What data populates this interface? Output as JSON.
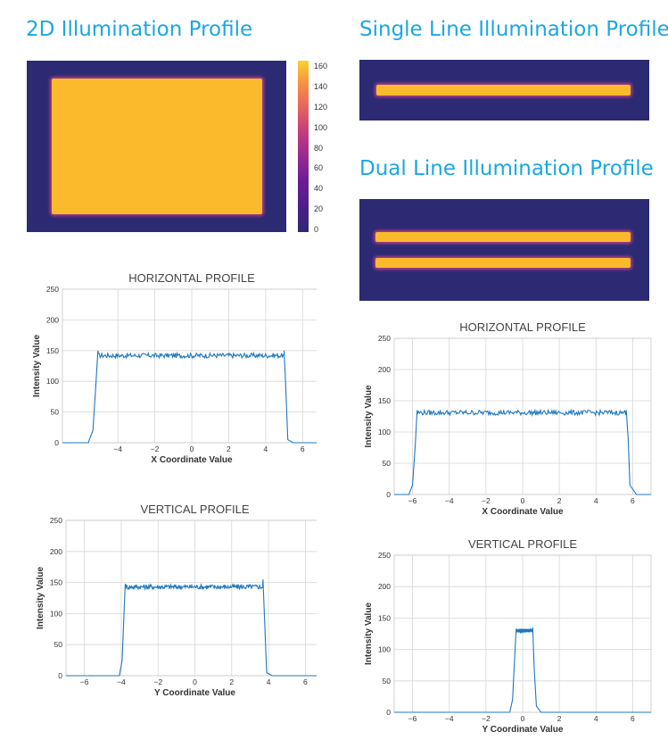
{
  "headings": {
    "two_d": "2D Illumination Profile",
    "single_line": "Single Line Illumination Profile",
    "dual_line": "Dual Line Illumination Profile"
  },
  "colorbar": {
    "ticks": [
      "0",
      "20",
      "40",
      "60",
      "80",
      "100",
      "120",
      "140",
      "160"
    ],
    "colors": [
      "#2c2a73",
      "#6f1b96",
      "#c83f7a",
      "#f7963c",
      "#fbd32f"
    ]
  },
  "colors": {
    "heading": "#1ca7e0",
    "background": "#2c2a73",
    "illuminated": "#fbba2c",
    "line": "#1f78bf",
    "grid": "#d0d0d0"
  },
  "chart_data": [
    {
      "id": "h1",
      "type": "line",
      "title": "HORIZONTAL PROFILE",
      "xlabel": "X Coordinate Value",
      "ylabel": "Intensity Value",
      "xlim": [
        -7,
        7
      ],
      "ylim": [
        0,
        250
      ],
      "xticks": [
        -4,
        -2,
        0,
        2,
        4,
        6
      ],
      "yticks": [
        0,
        50,
        100,
        150,
        200,
        250
      ],
      "grid": true,
      "points": [
        [
          -7,
          0
        ],
        [
          -5.6,
          0
        ],
        [
          -5.35,
          20
        ],
        [
          -5.2,
          90
        ],
        [
          -5.08,
          150
        ],
        [
          5.0,
          150
        ],
        [
          5.1,
          82
        ],
        [
          5.2,
          5
        ],
        [
          5.5,
          0
        ],
        [
          7,
          0
        ]
      ],
      "plateau": {
        "x": [
          -5.05,
          5.0
        ],
        "level": 142,
        "noise": 4
      }
    },
    {
      "id": "v1",
      "type": "line",
      "title": "VERTICAL PROFILE",
      "xlabel": "Y Coordinate Value",
      "ylabel": "Intensity Value",
      "xlim": [
        -7,
        7
      ],
      "ylim": [
        0,
        250
      ],
      "xticks": [
        -6,
        -4,
        -2,
        0,
        2,
        4,
        6
      ],
      "yticks": [
        0,
        50,
        100,
        150,
        200,
        250
      ],
      "grid": true,
      "points": [
        [
          -7,
          0
        ],
        [
          -4.1,
          0
        ],
        [
          -3.95,
          25
        ],
        [
          -3.85,
          100
        ],
        [
          -3.78,
          148
        ],
        [
          3.7,
          155
        ],
        [
          3.8,
          80
        ],
        [
          3.9,
          5
        ],
        [
          4.2,
          0
        ],
        [
          7,
          0
        ]
      ],
      "plateau": {
        "x": [
          -3.75,
          3.68
        ],
        "level": 143,
        "noise": 4
      }
    },
    {
      "id": "h2",
      "type": "line",
      "title": "HORIZONTAL PROFILE",
      "xlabel": "X Coordinate Value",
      "ylabel": "Intensity Value",
      "xlim": [
        -7,
        7
      ],
      "ylim": [
        0,
        250
      ],
      "xticks": [
        -6,
        -4,
        -2,
        0,
        2,
        4,
        6
      ],
      "yticks": [
        0,
        50,
        100,
        150,
        200,
        250
      ],
      "grid": true,
      "points": [
        [
          -7,
          0
        ],
        [
          -6.2,
          0
        ],
        [
          -6.0,
          15
        ],
        [
          -5.85,
          80
        ],
        [
          -5.75,
          135
        ],
        [
          5.65,
          135
        ],
        [
          5.75,
          90
        ],
        [
          5.85,
          15
        ],
        [
          6.2,
          0
        ],
        [
          7,
          0
        ]
      ],
      "plateau": {
        "x": [
          -5.72,
          5.62
        ],
        "level": 131,
        "noise": 4
      }
    },
    {
      "id": "v2",
      "type": "line",
      "title": "VERTICAL PROFILE",
      "xlabel": "Y Coordinate Value",
      "ylabel": "Intensity Value",
      "xlim": [
        -7,
        7
      ],
      "ylim": [
        0,
        250
      ],
      "xticks": [
        -6,
        -4,
        -2,
        0,
        2,
        4,
        6
      ],
      "yticks": [
        0,
        50,
        100,
        150,
        200,
        250
      ],
      "grid": true,
      "points": [
        [
          -7,
          0
        ],
        [
          -0.7,
          0
        ],
        [
          -0.55,
          20
        ],
        [
          -0.42,
          95
        ],
        [
          -0.35,
          133
        ],
        [
          0.55,
          135
        ],
        [
          0.63,
          70
        ],
        [
          0.75,
          10
        ],
        [
          1.0,
          0
        ],
        [
          7,
          0
        ]
      ],
      "plateau": {
        "x": [
          -0.32,
          0.55
        ],
        "level": 130,
        "noise": 3
      }
    }
  ]
}
